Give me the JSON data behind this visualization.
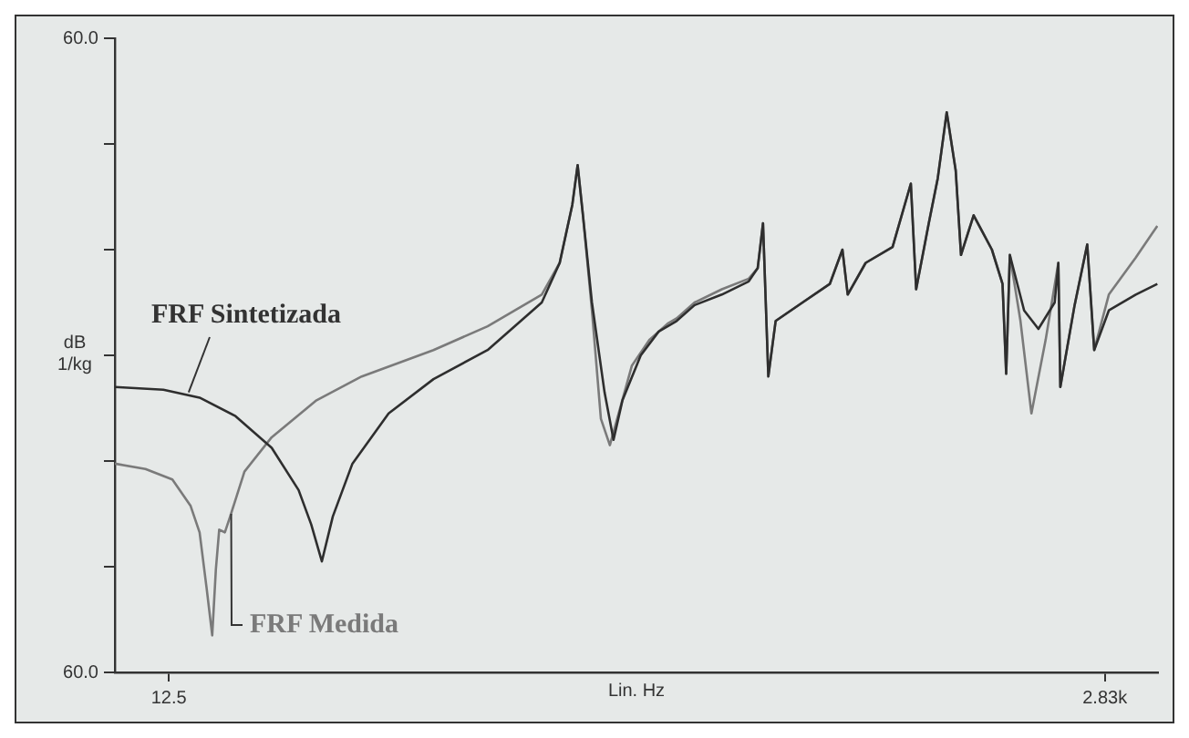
{
  "chart_data": {
    "type": "line",
    "xlabel": "Lin. Hz",
    "ylabel": "dB 1/kg",
    "xlim": [
      -150,
      2990
    ],
    "xticks": [
      {
        "value": 12.5,
        "label": "12.5"
      },
      {
        "value": 2830,
        "label": "2.83k"
      }
    ],
    "ylim": [
      -60,
      60
    ],
    "yticks": [
      {
        "value": -60,
        "label": "60.0"
      },
      {
        "value": -40,
        "label": null
      },
      {
        "value": -20,
        "label": null
      },
      {
        "value": 0,
        "label": null
      },
      {
        "value": 20,
        "label": null
      },
      {
        "value": 40,
        "label": null
      },
      {
        "value": 60,
        "label": "60.0"
      }
    ],
    "grid": false,
    "legend": false,
    "marker": "none",
    "line_style": "solid",
    "series": [
      {
        "name": "FRF Sintetizada",
        "color": "#2e2e2e",
        "x": [
          -150,
          -4,
          105,
          213,
          322,
          403,
          441,
          473,
          506,
          565,
          674,
          809,
          972,
          1135,
          1189,
          1227,
          1243,
          1259,
          1286,
          1324,
          1351,
          1378,
          1433,
          1487,
          1541,
          1595,
          1677,
          1758,
          1785,
          1801,
          1817,
          1839,
          1920,
          2002,
          2040,
          2056,
          2110,
          2191,
          2246,
          2262,
          2300,
          2327,
          2354,
          2381,
          2397,
          2435,
          2490,
          2522,
          2533,
          2544,
          2587,
          2630,
          2679,
          2690,
          2696,
          2739,
          2777,
          2798,
          2842,
          2923,
          2988
        ],
        "values": [
          -6,
          -6.5,
          -8,
          -11.5,
          -17.5,
          -25.5,
          -32,
          -39,
          -30.5,
          -20.5,
          -11,
          -4.5,
          1,
          10,
          17.5,
          28.5,
          36,
          26.5,
          10,
          -7,
          -16,
          -8.5,
          0,
          4.5,
          6.5,
          9.5,
          11.5,
          14,
          16.5,
          25,
          -4,
          6.5,
          10,
          13.5,
          20,
          11.5,
          17.5,
          20.5,
          32.5,
          12.5,
          25,
          33.5,
          46,
          35,
          19,
          26.5,
          20,
          13.5,
          -3.5,
          19,
          8.5,
          5,
          10,
          17.5,
          -6,
          9.5,
          21,
          1,
          8.5,
          11.5,
          13.5
        ]
      },
      {
        "name": "FRF Medida",
        "color": "#7a7a7a",
        "x": [
          -150,
          -58,
          23,
          78,
          105,
          126,
          143,
          154,
          164,
          181,
          197,
          240,
          322,
          457,
          593,
          809,
          972,
          1135,
          1189,
          1227,
          1243,
          1259,
          1286,
          1313,
          1340,
          1362,
          1406,
          1460,
          1514,
          1541,
          1595,
          1677,
          1758,
          1785,
          1801,
          1817,
          1839,
          1920,
          2002,
          2040,
          2056,
          2110,
          2191,
          2246,
          2262,
          2300,
          2327,
          2354,
          2381,
          2397,
          2435,
          2490,
          2522,
          2533,
          2544,
          2576,
          2609,
          2652,
          2690,
          2696,
          2739,
          2777,
          2798,
          2842,
          2923,
          2988
        ],
        "values": [
          -20.5,
          -21.5,
          -23.5,
          -28.5,
          -33.5,
          -44,
          -53,
          -40.5,
          -33,
          -33.5,
          -30.5,
          -22,
          -15.5,
          -8.5,
          -4,
          1,
          5.5,
          11.5,
          17.5,
          28.5,
          36,
          26.5,
          8.5,
          -12,
          -17,
          -12,
          -2,
          3,
          6,
          7,
          10,
          12.5,
          14.5,
          16.5,
          25,
          -4,
          6.5,
          10,
          13.5,
          20,
          11.5,
          17.5,
          20.5,
          32.5,
          12.5,
          25,
          33.5,
          46,
          35,
          19,
          26.5,
          20,
          13.5,
          -3.5,
          19,
          6.5,
          -11,
          3,
          17.5,
          -6,
          9.5,
          21,
          1,
          11.5,
          18.5,
          24.5
        ]
      }
    ]
  }
}
